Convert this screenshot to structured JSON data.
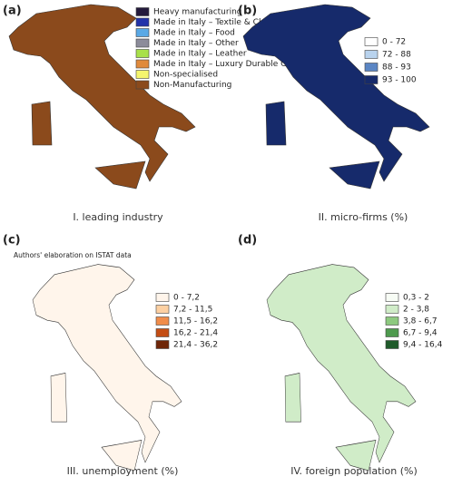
{
  "panels": [
    {
      "label": "(a)",
      "caption": "I. leading industry",
      "legend": [
        {
          "text": "Heavy manufacturing",
          "color": "#241a3c"
        },
        {
          "text": "Made in Italy – Textile & Clothing",
          "color": "#2233aa"
        },
        {
          "text": "Made in Italy – Food",
          "color": "#5aa9e6"
        },
        {
          "text": "Made in Italy – Other",
          "color": "#8c8c9a"
        },
        {
          "text": "Made in Italy – Leather",
          "color": "#a8e04a"
        },
        {
          "text": "Made in Italy – Luxury Durable Goods",
          "color": "#e08a3c"
        },
        {
          "text": "Non-specialised",
          "color": "#f5f56e"
        },
        {
          "text": "Non-Manufacturing",
          "color": "#8b4a1c"
        }
      ]
    },
    {
      "label": "(b)",
      "caption": "II. micro-firms (%)",
      "legend": [
        {
          "text": "0 - 72",
          "color": "#ffffff"
        },
        {
          "text": "72 - 88",
          "color": "#b9d3ee"
        },
        {
          "text": "88 - 93",
          "color": "#5b86c4"
        },
        {
          "text": "93 - 100",
          "color": "#162a6b"
        }
      ]
    },
    {
      "label": "(c)",
      "caption": "III. unemployment (%)",
      "legend": [
        {
          "text": "0 - 7,2",
          "color": "#fff5eb"
        },
        {
          "text": "7,2 - 11,5",
          "color": "#fdd0a2"
        },
        {
          "text": "11,5 - 16,2",
          "color": "#f08c4a"
        },
        {
          "text": "16,2 - 21,4",
          "color": "#c44d14"
        },
        {
          "text": "21,4 - 36,2",
          "color": "#6e2608"
        }
      ]
    },
    {
      "label": "(d)",
      "caption": "IV. foreign population (%)",
      "legend": [
        {
          "text": "0,3 - 2",
          "color": "#f7fcf5"
        },
        {
          "text": "2 - 3,8",
          "color": "#d0ecc8"
        },
        {
          "text": "3,8 - 6,7",
          "color": "#8dc97f"
        },
        {
          "text": "6,7 - 9,4",
          "color": "#4e9a4e"
        },
        {
          "text": "9,4 - 16,4",
          "color": "#1f5a2a"
        }
      ]
    }
  ],
  "note": "Authors' elaboration on ISTAT data"
}
